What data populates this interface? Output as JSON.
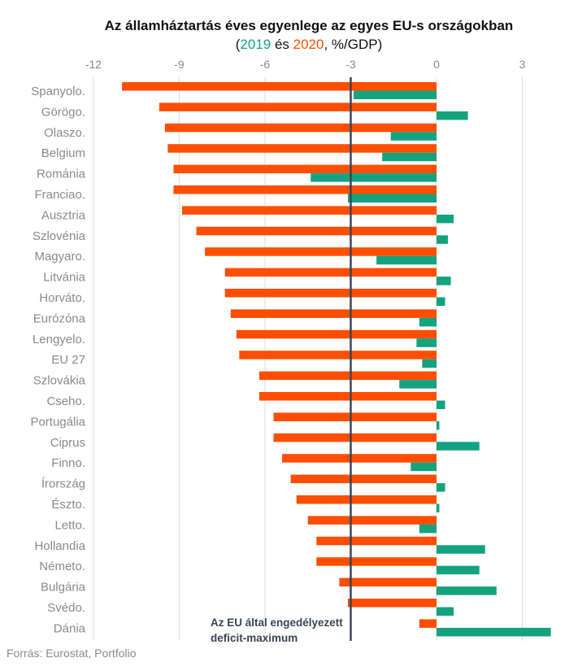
{
  "chart_data": {
    "type": "bar",
    "orientation": "horizontal",
    "title": "Az államháztartás éves egyenlege az egyes EU-s országokban",
    "subtitle": {
      "open": "(",
      "year_2019": "2019",
      "and": " és ",
      "year_2020": "2020",
      "unit": ", %/GDP)"
    },
    "categories": [
      "Spanyolo.",
      "Görögo.",
      "Olaszo.",
      "Belgium",
      "Románia",
      "Franciao.",
      "Ausztria",
      "Szlovénia",
      "Magyaro.",
      "Litvánia",
      "Horváto.",
      "Eurózóna",
      "Lengyelo.",
      "EU 27",
      "Szlovákia",
      "Cseho.",
      "Portugália",
      "Ciprus",
      "Finno.",
      "Írország",
      "Észto.",
      "Letto.",
      "Hollandia",
      "Németo.",
      "Bulgária",
      "Svédo.",
      "Dánia"
    ],
    "series": [
      {
        "name": "2020",
        "color": "#ff4e00",
        "values": [
          -11.0,
          -9.7,
          -9.5,
          -9.4,
          -9.2,
          -9.2,
          -8.9,
          -8.4,
          -8.1,
          -7.4,
          -7.4,
          -7.2,
          -7.0,
          -6.9,
          -6.2,
          -6.2,
          -5.7,
          -5.7,
          -5.4,
          -5.1,
          -4.9,
          -4.5,
          -4.2,
          -4.2,
          -3.4,
          -3.1,
          -0.6
        ]
      },
      {
        "name": "2019",
        "color": "#15a27f",
        "values": [
          -2.9,
          1.1,
          -1.6,
          -1.9,
          -4.4,
          -3.1,
          0.6,
          0.4,
          -2.1,
          0.5,
          0.3,
          -0.6,
          -0.7,
          -0.5,
          -1.3,
          0.3,
          0.1,
          1.5,
          -0.9,
          0.3,
          0.1,
          -0.6,
          1.7,
          1.5,
          2.1,
          0.6,
          4.0
        ]
      }
    ],
    "x_ticks": [
      -12,
      -9,
      -6,
      -3,
      0,
      3
    ],
    "x_tick_labels": [
      "-12",
      "-9",
      "-6",
      "-3",
      "0",
      "3"
    ],
    "xlim": [
      -12,
      4
    ],
    "reference_line": {
      "value": -3,
      "color": "#3a4556",
      "label_line1": "Az EU által engedélyezett",
      "label_line2": "deficit-maximum"
    },
    "grid": true,
    "source": "Forrás: Eurostat, Portfolio"
  }
}
